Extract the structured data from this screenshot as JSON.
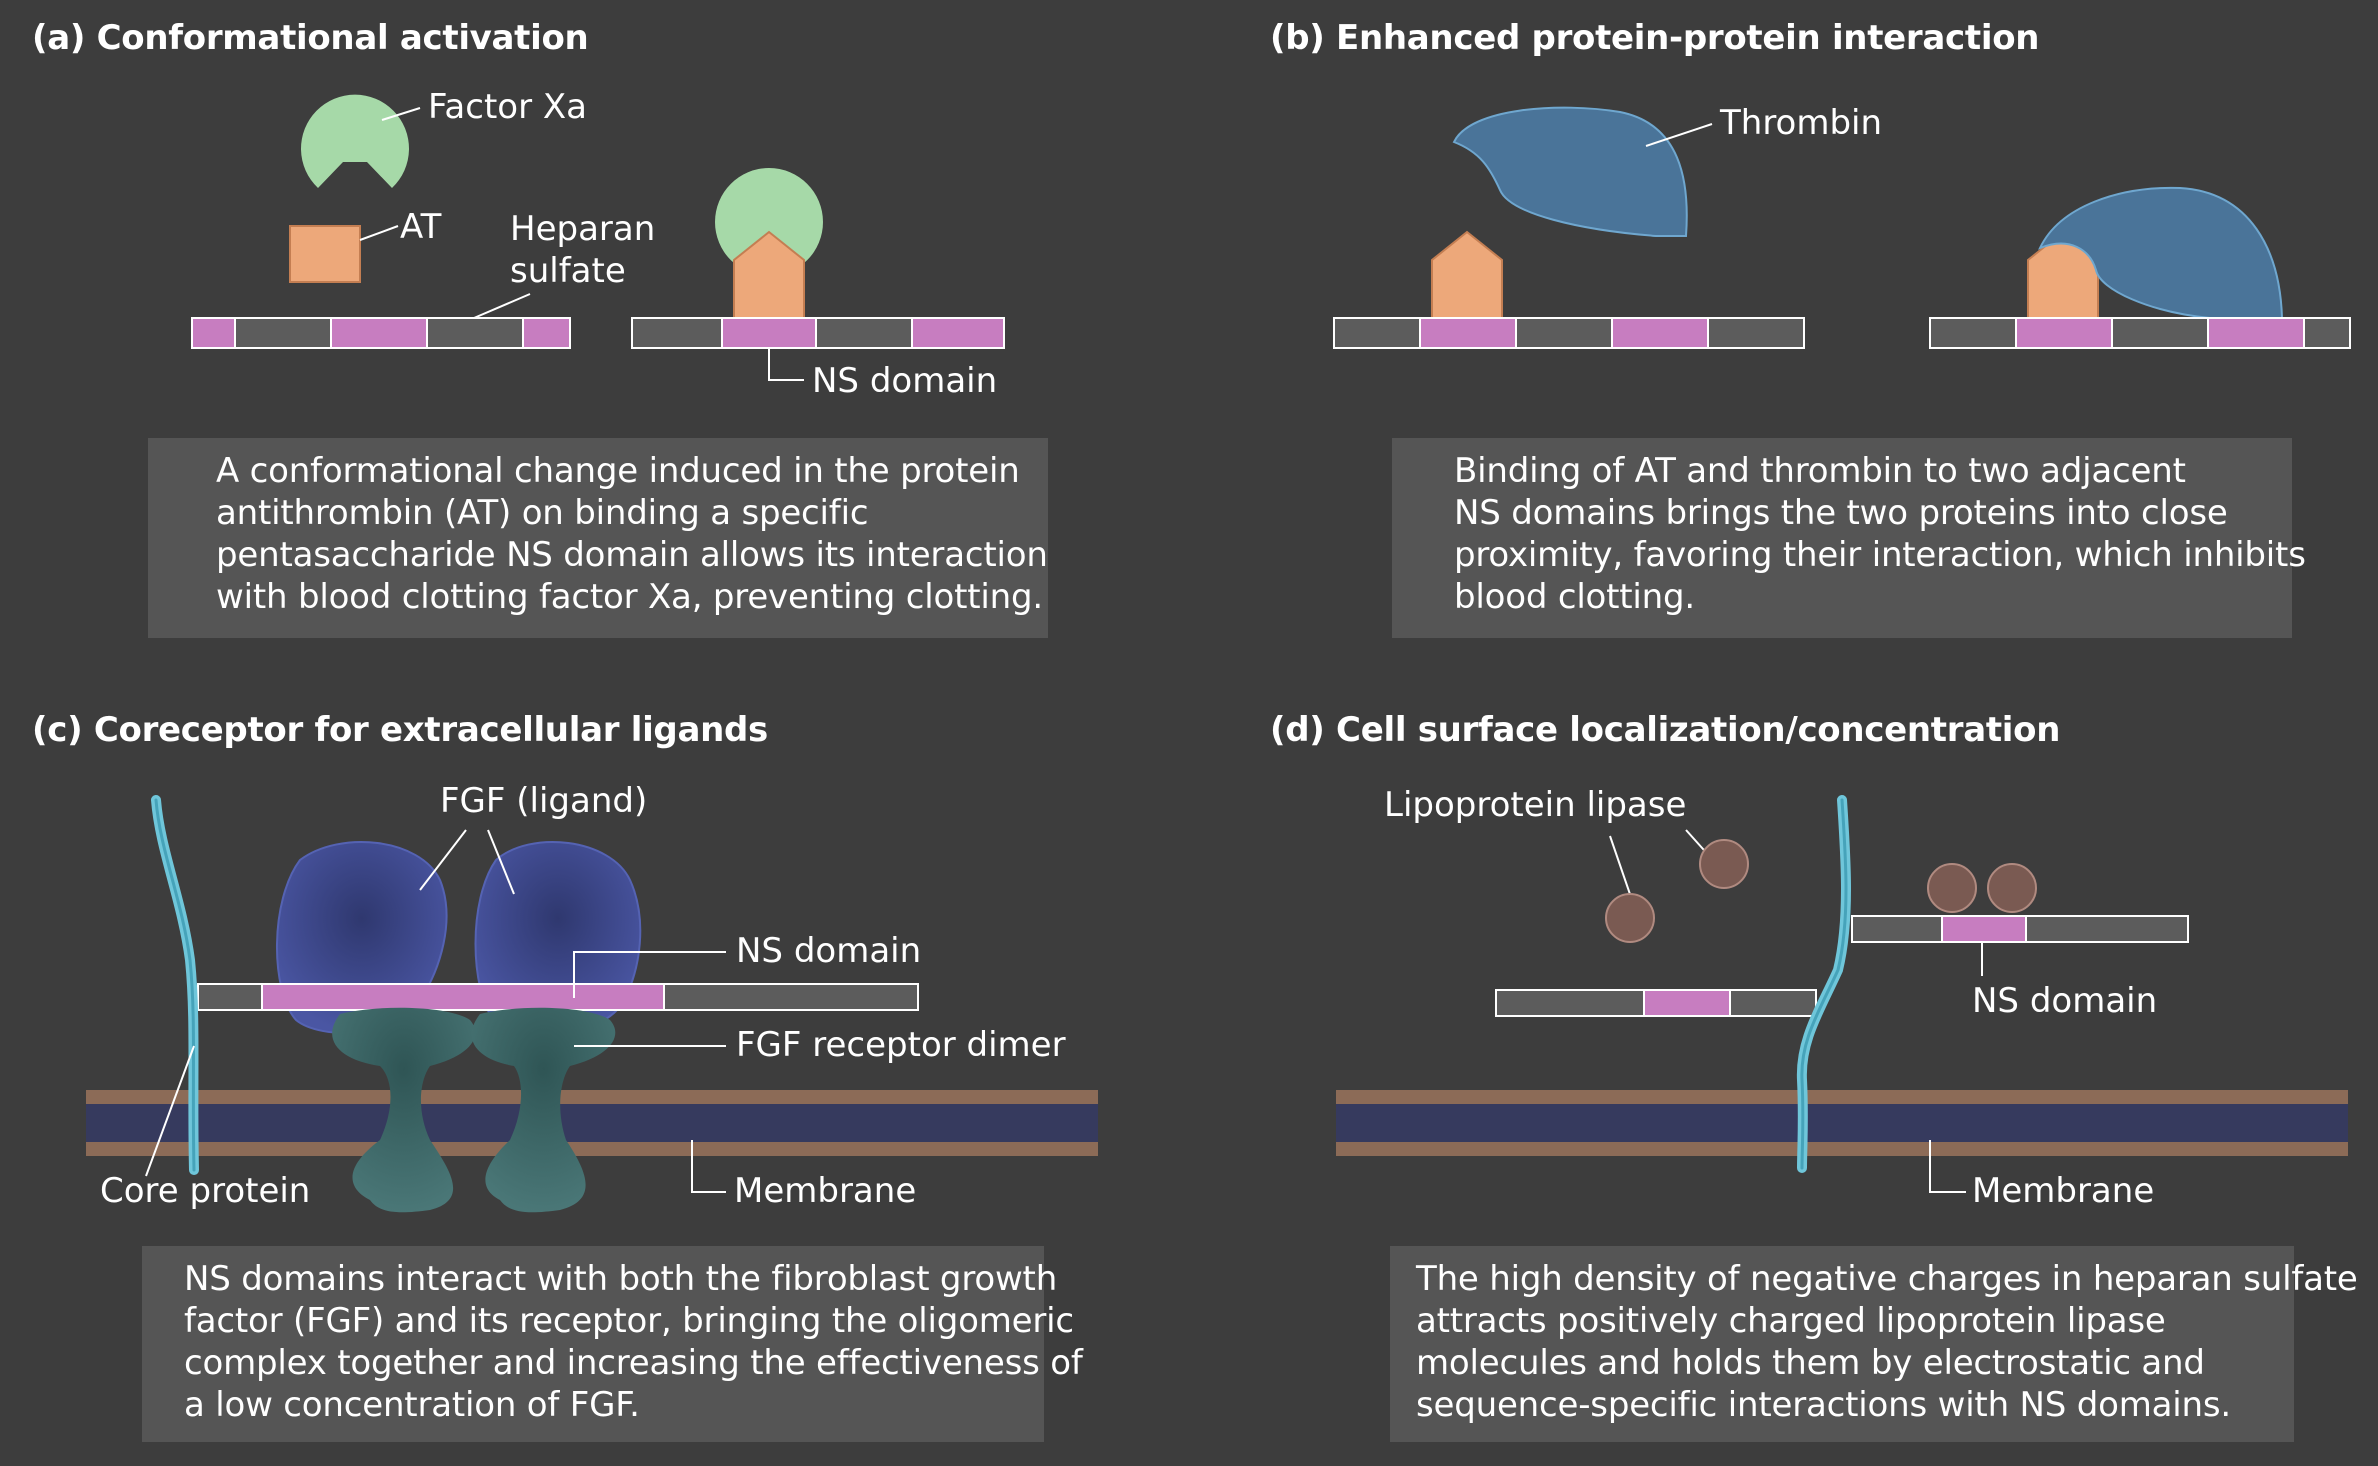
{
  "panels": {
    "a": {
      "heading": "(a) Conformational activation",
      "labels": {
        "factor_xa": "Factor Xa",
        "at": "AT",
        "heparan_line1": "Heparan",
        "heparan_line2": "sulfate",
        "ns_domain": "NS domain"
      },
      "caption": [
        "A conformational change induced in the protein",
        "antithrombin (AT) on binding a specific",
        "pentasaccharide NS domain allows its interaction",
        "with blood clotting factor Xa, preventing clotting."
      ]
    },
    "b": {
      "heading": "(b) Enhanced protein-protein interaction",
      "labels": {
        "thrombin": "Thrombin"
      },
      "caption": [
        "Binding of AT and thrombin to two adjacent",
        "NS domains brings the two proteins into close",
        "proximity, favoring their interaction, which inhibits",
        "blood clotting."
      ]
    },
    "c": {
      "heading": "(c) Coreceptor for extracellular ligands",
      "labels": {
        "fgf_ligand": "FGF (ligand)",
        "ns_domain": "NS domain",
        "fgf_receptor_dimer": "FGF receptor dimer",
        "core_protein": "Core protein",
        "membrane": "Membrane"
      },
      "caption": [
        "NS domains interact with both the fibroblast growth",
        "factor (FGF) and its receptor, bringing the oligomeric",
        "complex together and increasing the effectiveness of",
        "a low concentration of FGF."
      ]
    },
    "d": {
      "heading": "(d) Cell surface localization/concentration",
      "labels": {
        "lipoprotein_lipase": "Lipoprotein lipase",
        "ns_domain": "NS domain",
        "membrane": "Membrane"
      },
      "caption": [
        "The high density of negative charges in heparan sulfate",
        "attracts positively charged lipoprotein lipase",
        "molecules and holds them by electrostatic and",
        "sequence-specific interactions with NS domains."
      ]
    }
  },
  "colors": {
    "background": "#3d3d3d",
    "caption_box": "#555555",
    "ns_domain": "#c77dc0",
    "heparan_gray": "#5c5c5c",
    "factor_xa": "#a6d9a8",
    "antithrombin": "#eda87a",
    "thrombin": "#4a7499",
    "fgf": "#3e4b8f",
    "receptor": "#3f6b6b",
    "core_protein": "#6fc6da",
    "membrane_outer": "#8c6b57",
    "membrane_inner": "#363a5e",
    "lipase": "#7a5a52"
  },
  "icons": {
    "factor_xa": "pacman-shape",
    "antithrombin": "square-to-pentagon-shape",
    "thrombin": "blob-shape",
    "lipase": "circle-shape"
  }
}
